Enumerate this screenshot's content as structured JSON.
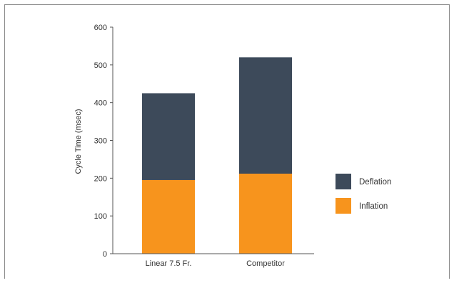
{
  "colors": {
    "deflation": "#3d4a5a",
    "inflation": "#f7941d",
    "axis": "#555555"
  },
  "chart_data": {
    "type": "bar",
    "stacked": true,
    "categories": [
      "Linear 7.5 Fr.",
      "Competitor"
    ],
    "series": [
      {
        "name": "Inflation",
        "values": [
          195,
          212
        ],
        "color": "#f7941d"
      },
      {
        "name": "Deflation",
        "values": [
          230,
          308
        ],
        "color": "#3d4a5a"
      }
    ],
    "xlabel": "",
    "ylabel": "Cycle Time (msec)",
    "ylim": [
      0,
      600
    ],
    "yticks": [
      0,
      100,
      200,
      300,
      400,
      500,
      600
    ],
    "grid": false,
    "legend": {
      "placement": "right",
      "order": [
        "Deflation",
        "Inflation"
      ]
    }
  }
}
